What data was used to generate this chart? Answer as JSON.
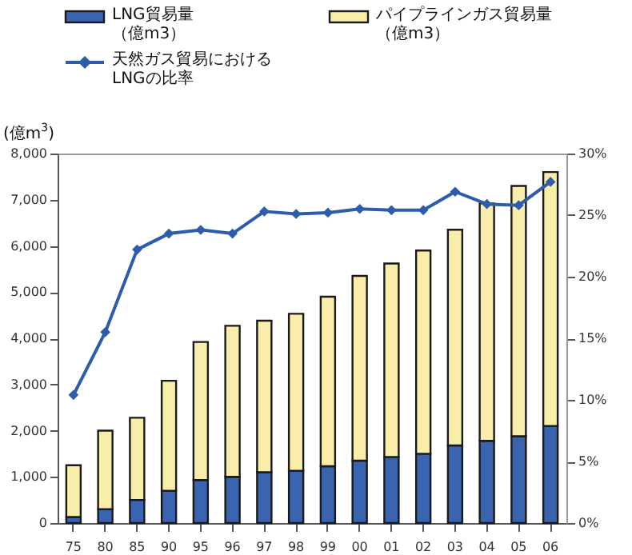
{
  "chart_data": {
    "type": "bar",
    "stacked": true,
    "legend": "top",
    "grid": false,
    "ylabel": "(億m$^{3}$)",
    "categories": [
      "75",
      "80",
      "85",
      "90",
      "95",
      "96",
      "97",
      "98",
      "99",
      "00",
      "01",
      "02",
      "03",
      "04",
      "05",
      "06"
    ],
    "ylim": [
      0,
      8000
    ],
    "yticks": [
      {
        "value": 0,
        "label": "0"
      },
      {
        "value": 1000,
        "label": "1,000"
      },
      {
        "value": 2000,
        "label": "2,000"
      },
      {
        "value": 3000,
        "label": "3,000"
      },
      {
        "value": 4000,
        "label": "4,000"
      },
      {
        "value": 5000,
        "label": "5,000"
      },
      {
        "value": 6000,
        "label": "6,000"
      },
      {
        "value": 7000,
        "label": "7,000"
      },
      {
        "value": 8000,
        "label": "8,000"
      }
    ],
    "y2lim": [
      0,
      30
    ],
    "y2ticks": [
      {
        "value": 0,
        "label": "0%"
      },
      {
        "value": 5,
        "label": "5%"
      },
      {
        "value": 10,
        "label": "10%"
      },
      {
        "value": 15,
        "label": "15%"
      },
      {
        "value": 20,
        "label": "20%"
      },
      {
        "value": 25,
        "label": "25%"
      },
      {
        "value": 30,
        "label": "30%"
      }
    ],
    "series": [
      {
        "name": "LNG貿易量（億m3）",
        "color": "#3a64b0",
        "values": [
          130,
          300,
          500,
          700,
          930,
          1000,
          1100,
          1130,
          1230,
          1350,
          1430,
          1500,
          1680,
          1780,
          1880,
          2100
        ]
      },
      {
        "name": "パイプラインガス貿易量（億m3）",
        "color": "#f8eeaa",
        "values": [
          1120,
          1700,
          1780,
          2380,
          2990,
          3270,
          3280,
          3400,
          3670,
          4000,
          4190,
          4400,
          4670,
          5140,
          5420,
          5500
        ]
      },
      {
        "name": "天然ガス貿易におけるLNGの比率",
        "type": "line",
        "axis": "y2",
        "marker": "diamond",
        "color": "#2c5caa",
        "values": [
          10.4,
          15.5,
          22.2,
          23.5,
          23.8,
          23.5,
          25.3,
          25.1,
          25.2,
          25.5,
          25.4,
          25.4,
          26.9,
          25.9,
          25.8,
          27.7
        ]
      }
    ]
  }
}
